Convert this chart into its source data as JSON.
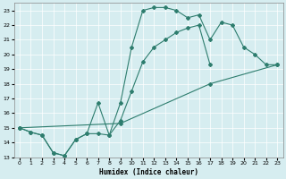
{
  "xlabel": "Humidex (Indice chaleur)",
  "bg_color": "#d6edf0",
  "line_color": "#2e7d6e",
  "grid_color": "#ffffff",
  "xlim": [
    -0.5,
    23.5
  ],
  "ylim": [
    13,
    23.5
  ],
  "yticks": [
    13,
    14,
    15,
    16,
    17,
    18,
    19,
    20,
    21,
    22,
    23
  ],
  "xticks": [
    0,
    1,
    2,
    3,
    4,
    5,
    6,
    7,
    8,
    9,
    10,
    11,
    12,
    13,
    14,
    15,
    16,
    17,
    18,
    19,
    20,
    21,
    22,
    23
  ],
  "line1_x": [
    0,
    1,
    2,
    3,
    4,
    5,
    6,
    7,
    8,
    9,
    10,
    11,
    12,
    13,
    14,
    15,
    16,
    17,
    18,
    19,
    20,
    21,
    22,
    23
  ],
  "line1_y": [
    15,
    14.7,
    14.5,
    13.3,
    13.1,
    14.2,
    14.6,
    14.6,
    14.5,
    16.7,
    20.5,
    23.0,
    23.2,
    23.2,
    23.0,
    22.5,
    22.7,
    21.0,
    22.2,
    22.0,
    20.5,
    20.0,
    19.3,
    19.3
  ],
  "line2_x": [
    0,
    1,
    2,
    3,
    4,
    5,
    6,
    7,
    8,
    9,
    10,
    11,
    12,
    13,
    14,
    15,
    16,
    17
  ],
  "line2_y": [
    15,
    14.7,
    14.5,
    13.3,
    13.1,
    14.2,
    14.6,
    16.7,
    14.5,
    15.5,
    17.5,
    19.5,
    20.5,
    21.0,
    21.5,
    21.8,
    22.0,
    19.3
  ],
  "line3_x": [
    0,
    9,
    17,
    23
  ],
  "line3_y": [
    15,
    15.3,
    18.0,
    19.3
  ]
}
